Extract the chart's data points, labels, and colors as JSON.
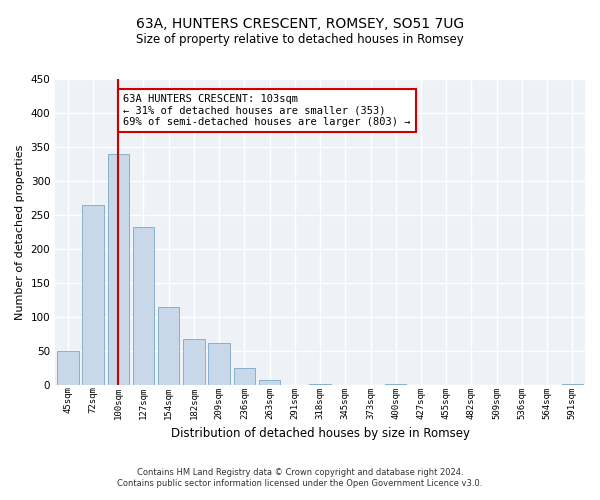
{
  "title": "63A, HUNTERS CRESCENT, ROMSEY, SO51 7UG",
  "subtitle": "Size of property relative to detached houses in Romsey",
  "xlabel": "Distribution of detached houses by size in Romsey",
  "ylabel": "Number of detached properties",
  "categories": [
    "45sqm",
    "72sqm",
    "100sqm",
    "127sqm",
    "154sqm",
    "182sqm",
    "209sqm",
    "236sqm",
    "263sqm",
    "291sqm",
    "318sqm",
    "345sqm",
    "373sqm",
    "400sqm",
    "427sqm",
    "455sqm",
    "482sqm",
    "509sqm",
    "536sqm",
    "564sqm",
    "591sqm"
  ],
  "values": [
    50,
    265,
    340,
    232,
    115,
    68,
    62,
    25,
    7,
    0,
    2,
    0,
    0,
    2,
    0,
    0,
    0,
    0,
    0,
    0,
    2
  ],
  "bar_color": "#c8d8e8",
  "bar_edge_color": "#7aa8c8",
  "vline_x": 2,
  "vline_color": "#cc0000",
  "ylim": [
    0,
    450
  ],
  "yticks": [
    0,
    50,
    100,
    150,
    200,
    250,
    300,
    350,
    400,
    450
  ],
  "ann_line1": "63A HUNTERS CRESCENT: 103sqm",
  "ann_line2": "← 31% of detached houses are smaller (353)",
  "ann_line3": "69% of semi-detached houses are larger (803) →",
  "annotation_box_color": "#cc0000",
  "background_color": "#eef2f7",
  "footer_line1": "Contains HM Land Registry data © Crown copyright and database right 2024.",
  "footer_line2": "Contains public sector information licensed under the Open Government Licence v3.0."
}
